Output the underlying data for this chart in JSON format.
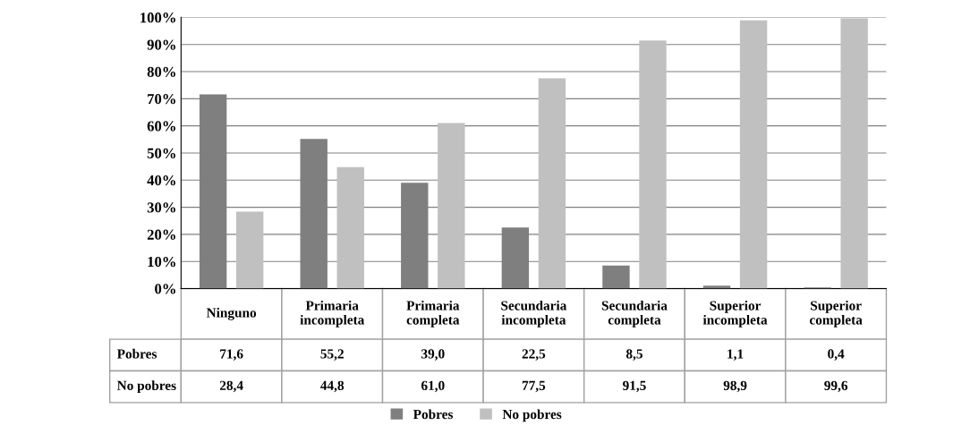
{
  "chart_data": {
    "type": "bar",
    "categories": [
      "Ninguno",
      "Primaria\nincompleta",
      "Primaria\ncompleta",
      "Secundaria\nincompleta",
      "Secundaria\ncompleta",
      "Superior\nincompleta",
      "Superior\ncompleta"
    ],
    "series": [
      {
        "name": "Pobres",
        "color": "#7f7f7f",
        "values": [
          71.6,
          55.2,
          39.0,
          22.5,
          8.5,
          1.1,
          0.4
        ],
        "value_labels": [
          "71,6",
          "55,2",
          "39,0",
          "22,5",
          "8,5",
          "1,1",
          "0,4"
        ]
      },
      {
        "name": "No pobres",
        "color": "#c0c0c0",
        "values": [
          28.4,
          44.8,
          61.0,
          77.5,
          91.5,
          98.9,
          99.6
        ],
        "value_labels": [
          "28,4",
          "44,8",
          "61,0",
          "77,5",
          "91,5",
          "98,9",
          "99,6"
        ]
      }
    ],
    "ylim": [
      0,
      100
    ],
    "yticks": [
      {
        "value": 0,
        "label": "0%"
      },
      {
        "value": 10,
        "label": "10%"
      },
      {
        "value": 20,
        "label": "20%"
      },
      {
        "value": 30,
        "label": "30%"
      },
      {
        "value": 40,
        "label": "40%"
      },
      {
        "value": 50,
        "label": "50%"
      },
      {
        "value": 60,
        "label": "60%"
      },
      {
        "value": 70,
        "label": "70%"
      },
      {
        "value": 80,
        "label": "80%"
      },
      {
        "value": 90,
        "label": "90%"
      },
      {
        "value": 100,
        "label": "100%"
      }
    ],
    "grid": "y",
    "legend": "bottom"
  }
}
